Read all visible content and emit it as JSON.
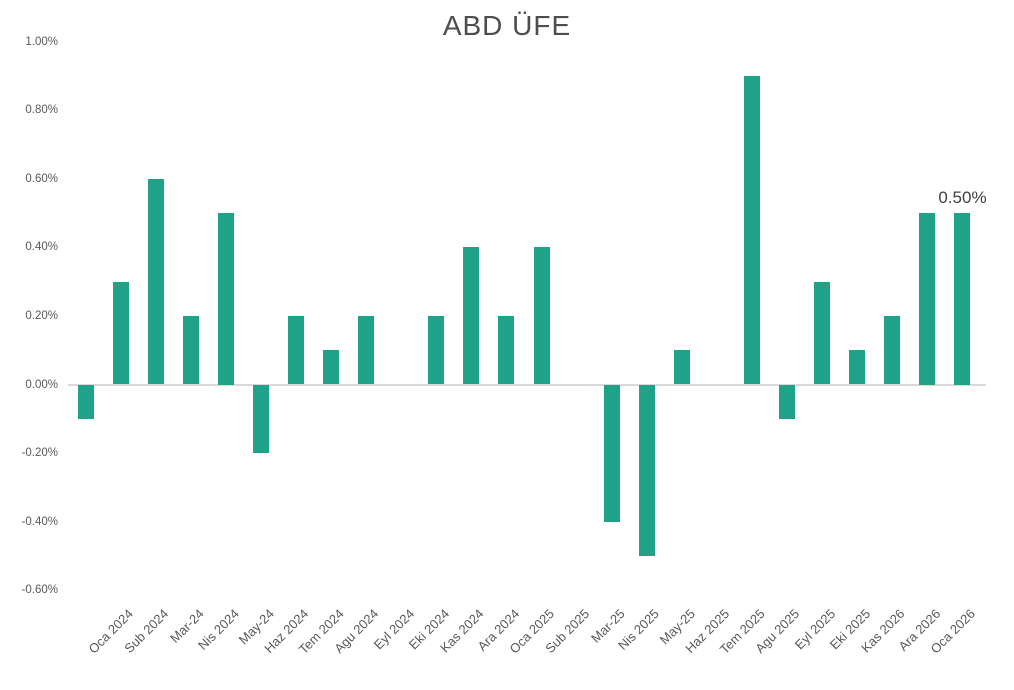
{
  "chart_data": {
    "type": "bar",
    "title": "ABD ÜFE",
    "categories": [
      "",
      "Oca 2024",
      "Sub 2024",
      "Mar-24",
      "Nis 2024",
      "May-24",
      "Haz 2024",
      "Tem 2024",
      "Agu 2024",
      "Eyl 2024",
      "Eki 2024",
      "Kas 2024",
      "Ara 2024",
      "Oca 2025",
      "Sub 2025",
      "Mar-25",
      "Nis 2025",
      "May-25",
      "Haz 2025",
      "Tem 2025",
      "Agu 2025",
      "Eyl 2025",
      "Eki 2025",
      "Kas 2026",
      "Ara 2026",
      "Oca 2026"
    ],
    "values": [
      -0.1,
      0.3,
      0.6,
      0.2,
      0.5,
      -0.2,
      0.2,
      0.1,
      0.2,
      0.0,
      0.2,
      0.4,
      0.2,
      0.4,
      0.0,
      -0.4,
      -0.5,
      0.1,
      0.0,
      0.9,
      -0.1,
      0.3,
      0.1,
      0.2,
      0.5,
      0.5
    ],
    "value_unit": "%",
    "xlabel": "",
    "ylabel": "",
    "ylim": [
      -0.6,
      1.0
    ],
    "y_tick_step": 0.2,
    "y_ticks": [
      {
        "label": "1.00%",
        "value": 1.0
      },
      {
        "label": "0.80%",
        "value": 0.8
      },
      {
        "label": "0.60%",
        "value": 0.6
      },
      {
        "label": "0.40%",
        "value": 0.4
      },
      {
        "label": "0.20%",
        "value": 0.2
      },
      {
        "label": "0.00%",
        "value": 0.0
      },
      {
        "label": "-0.20%",
        "value": -0.2
      },
      {
        "label": "-0.40%",
        "value": -0.4
      },
      {
        "label": "-0.60%",
        "value": -0.6
      }
    ],
    "grid": false,
    "legend": false,
    "bar_color": "#1fa287",
    "axis_line_color": "#d9d9d9",
    "tick_label_color": "#595959",
    "title_color": "#4d4d4d",
    "annotation": {
      "text": "0.50%",
      "category_index": 25
    }
  }
}
